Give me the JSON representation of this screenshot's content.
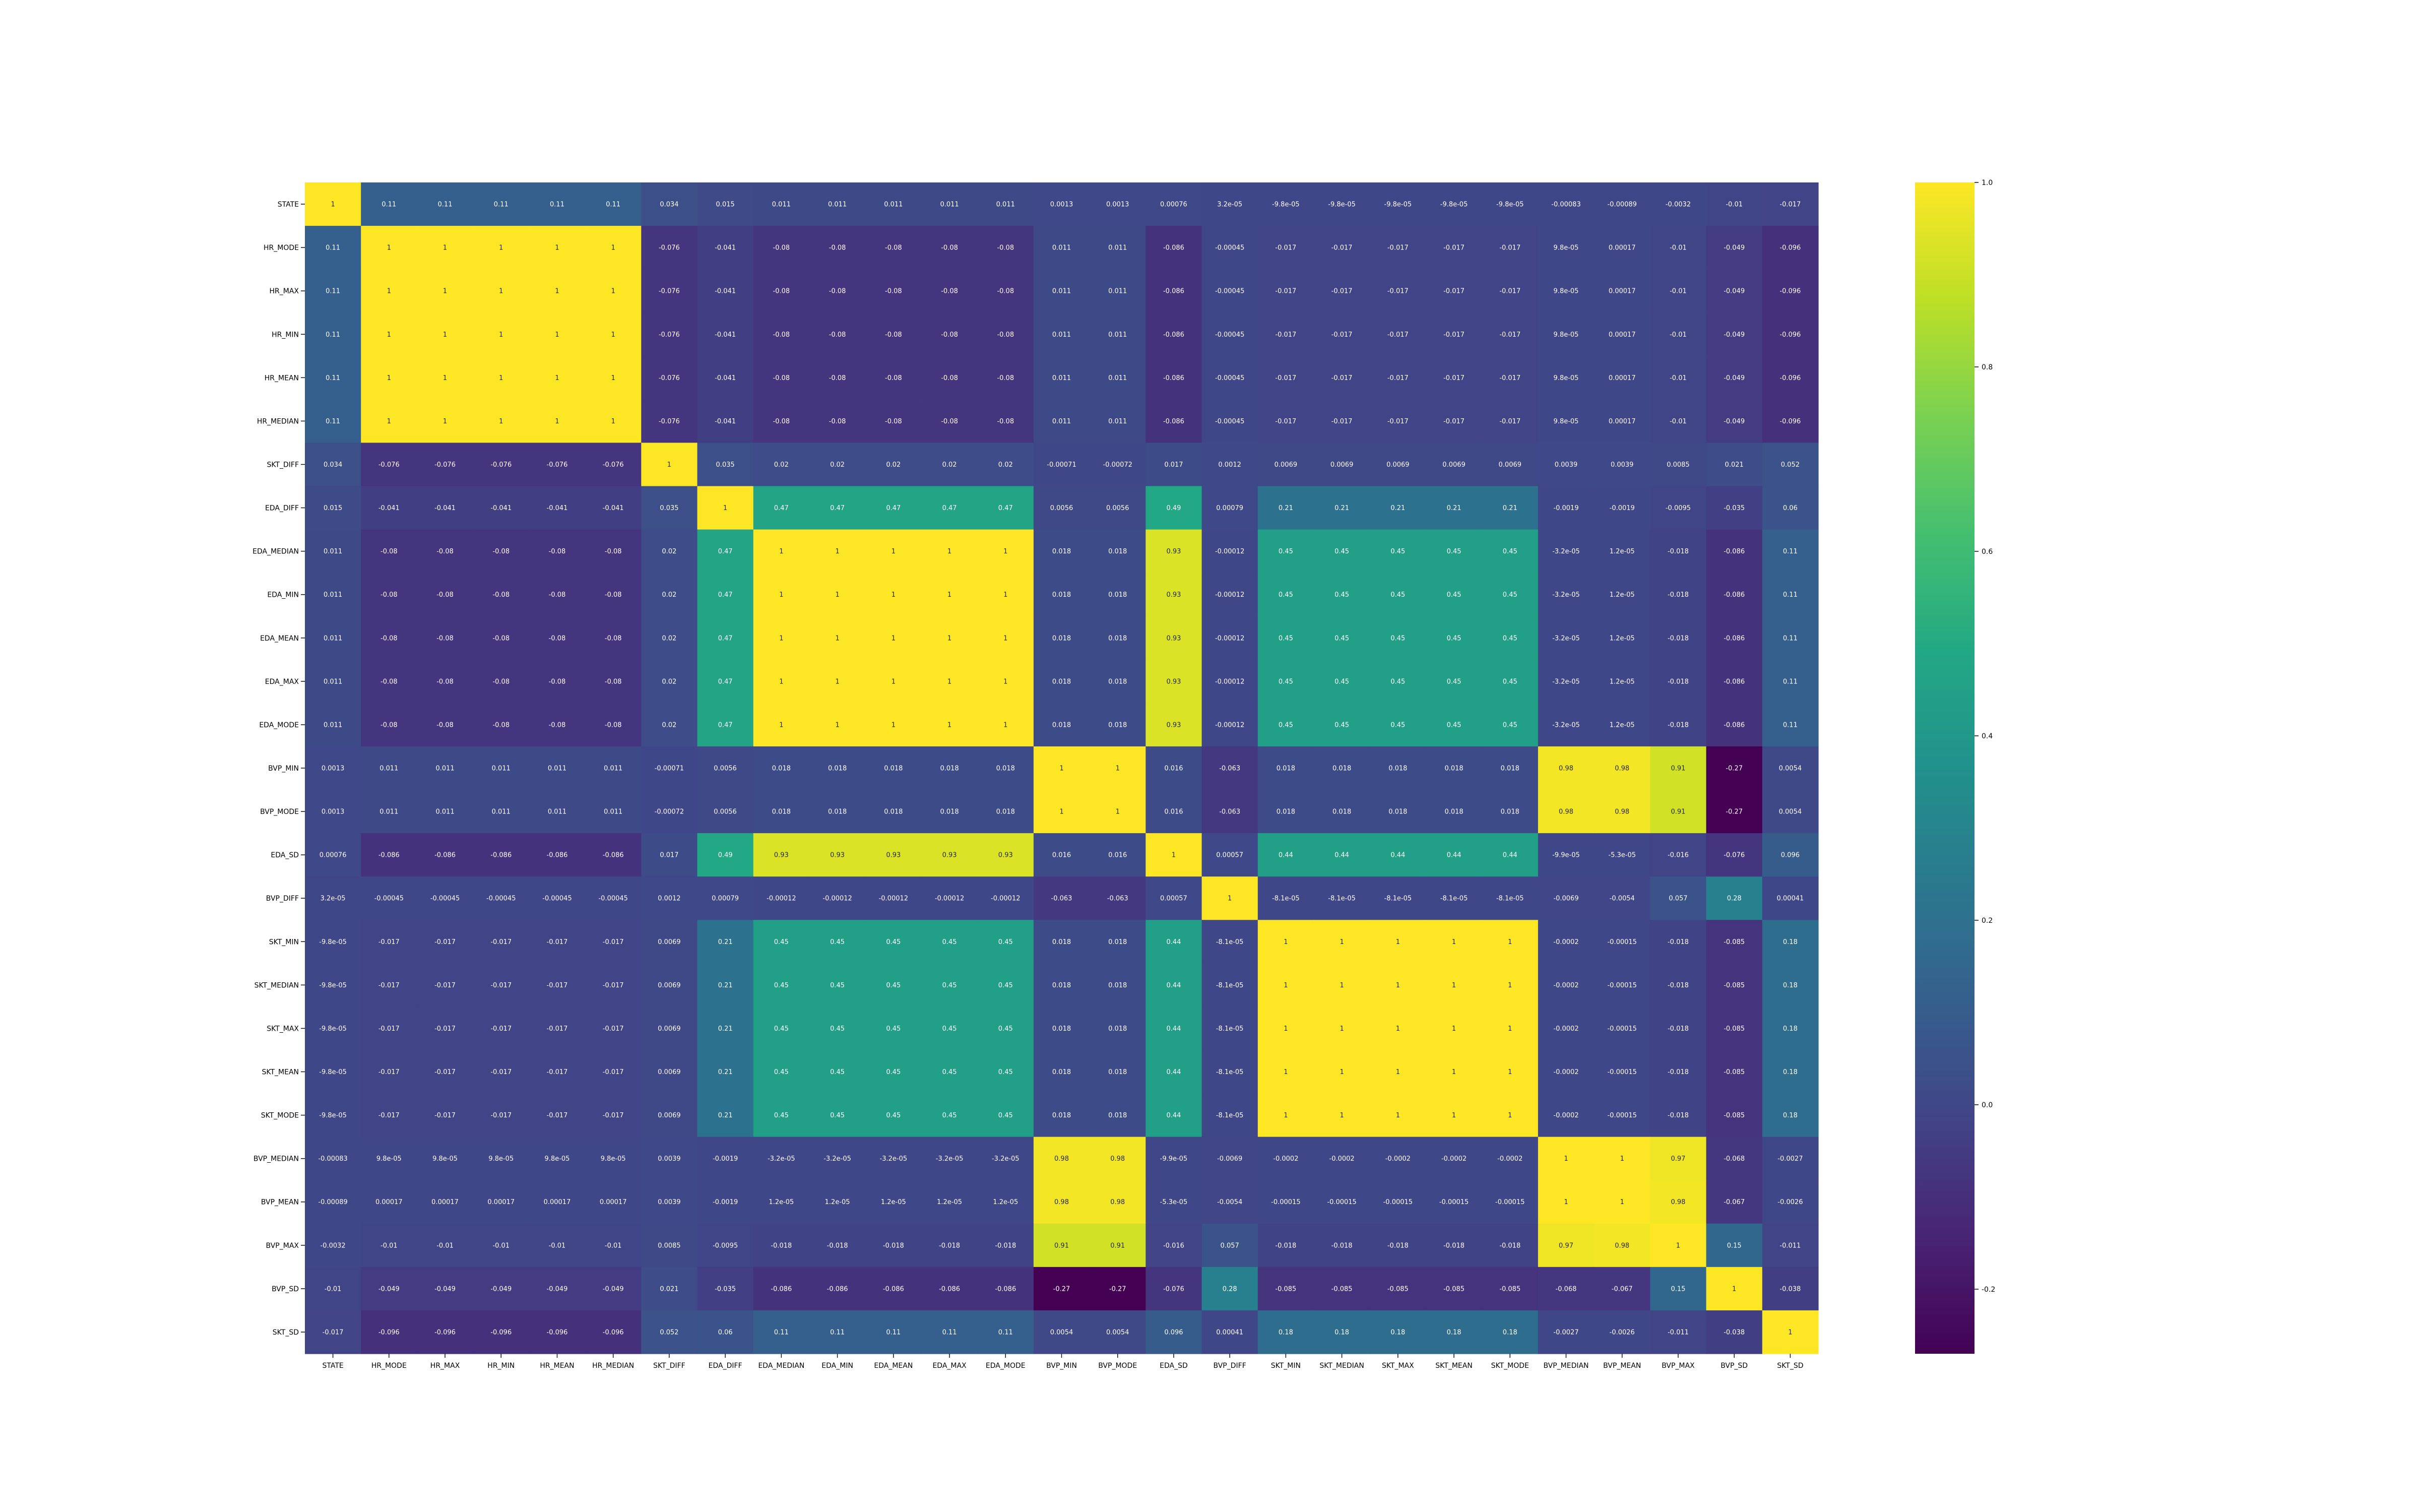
{
  "chart_data": {
    "type": "heatmap",
    "title": "",
    "xlabel": "",
    "ylabel": "",
    "labels": [
      "STATE",
      "HR_MODE",
      "HR_MAX",
      "HR_MIN",
      "HR_MEAN",
      "HR_MEDIAN",
      "SKT_DIFF",
      "EDA_DIFF",
      "EDA_MEDIAN",
      "EDA_MIN",
      "EDA_MEAN",
      "EDA_MAX",
      "EDA_MODE",
      "BVP_MIN",
      "BVP_MODE",
      "EDA_SD",
      "BVP_DIFF",
      "SKT_MIN",
      "SKT_MEDIAN",
      "SKT_MAX",
      "SKT_MEAN",
      "SKT_MODE",
      "BVP_MEDIAN",
      "BVP_MEAN",
      "BVP_MAX",
      "BVP_SD",
      "SKT_SD"
    ],
    "colormap": "viridis",
    "vmin": -0.27,
    "vmax": 1,
    "colorbar_ticks": [
      "-0.2",
      "0.0",
      "0.2",
      "0.4",
      "0.6",
      "0.8",
      "1.0"
    ],
    "colorbar_tick_values": [
      -0.2,
      0.0,
      0.2,
      0.4,
      0.6,
      0.8,
      1.0
    ],
    "colorbar_placement": "right",
    "matrix": [
      [
        "1",
        "0.11",
        "0.11",
        "0.11",
        "0.11",
        "0.11",
        "0.034",
        "0.015",
        "0.011",
        "0.011",
        "0.011",
        "0.011",
        "0.011",
        "0.0013",
        "0.0013",
        "0.00076",
        "3.2e-05",
        "-9.8e-05",
        "-9.8e-05",
        "-9.8e-05",
        "-9.8e-05",
        "-9.8e-05",
        "-0.00083",
        "-0.00089",
        "-0.0032",
        "-0.01",
        "-0.017"
      ],
      [
        "0.11",
        "1",
        "1",
        "1",
        "1",
        "1",
        "-0.076",
        "-0.041",
        "-0.08",
        "-0.08",
        "-0.08",
        "-0.08",
        "-0.08",
        "0.011",
        "0.011",
        "-0.086",
        "-0.00045",
        "-0.017",
        "-0.017",
        "-0.017",
        "-0.017",
        "-0.017",
        "9.8e-05",
        "0.00017",
        "-0.01",
        "-0.049",
        "-0.096"
      ],
      [
        "0.11",
        "1",
        "1",
        "1",
        "1",
        "1",
        "-0.076",
        "-0.041",
        "-0.08",
        "-0.08",
        "-0.08",
        "-0.08",
        "-0.08",
        "0.011",
        "0.011",
        "-0.086",
        "-0.00045",
        "-0.017",
        "-0.017",
        "-0.017",
        "-0.017",
        "-0.017",
        "9.8e-05",
        "0.00017",
        "-0.01",
        "-0.049",
        "-0.096"
      ],
      [
        "0.11",
        "1",
        "1",
        "1",
        "1",
        "1",
        "-0.076",
        "-0.041",
        "-0.08",
        "-0.08",
        "-0.08",
        "-0.08",
        "-0.08",
        "0.011",
        "0.011",
        "-0.086",
        "-0.00045",
        "-0.017",
        "-0.017",
        "-0.017",
        "-0.017",
        "-0.017",
        "9.8e-05",
        "0.00017",
        "-0.01",
        "-0.049",
        "-0.096"
      ],
      [
        "0.11",
        "1",
        "1",
        "1",
        "1",
        "1",
        "-0.076",
        "-0.041",
        "-0.08",
        "-0.08",
        "-0.08",
        "-0.08",
        "-0.08",
        "0.011",
        "0.011",
        "-0.086",
        "-0.00045",
        "-0.017",
        "-0.017",
        "-0.017",
        "-0.017",
        "-0.017",
        "9.8e-05",
        "0.00017",
        "-0.01",
        "-0.049",
        "-0.096"
      ],
      [
        "0.11",
        "1",
        "1",
        "1",
        "1",
        "1",
        "-0.076",
        "-0.041",
        "-0.08",
        "-0.08",
        "-0.08",
        "-0.08",
        "-0.08",
        "0.011",
        "0.011",
        "-0.086",
        "-0.00045",
        "-0.017",
        "-0.017",
        "-0.017",
        "-0.017",
        "-0.017",
        "9.8e-05",
        "0.00017",
        "-0.01",
        "-0.049",
        "-0.096"
      ],
      [
        "0.034",
        "-0.076",
        "-0.076",
        "-0.076",
        "-0.076",
        "-0.076",
        "1",
        "0.035",
        "0.02",
        "0.02",
        "0.02",
        "0.02",
        "0.02",
        "-0.00071",
        "-0.00072",
        "0.017",
        "0.0012",
        "0.0069",
        "0.0069",
        "0.0069",
        "0.0069",
        "0.0069",
        "0.0039",
        "0.0039",
        "0.0085",
        "0.021",
        "0.052"
      ],
      [
        "0.015",
        "-0.041",
        "-0.041",
        "-0.041",
        "-0.041",
        "-0.041",
        "0.035",
        "1",
        "0.47",
        "0.47",
        "0.47",
        "0.47",
        "0.47",
        "0.0056",
        "0.0056",
        "0.49",
        "0.00079",
        "0.21",
        "0.21",
        "0.21",
        "0.21",
        "0.21",
        "-0.0019",
        "-0.0019",
        "-0.0095",
        "-0.035",
        "0.06"
      ],
      [
        "0.011",
        "-0.08",
        "-0.08",
        "-0.08",
        "-0.08",
        "-0.08",
        "0.02",
        "0.47",
        "1",
        "1",
        "1",
        "1",
        "1",
        "0.018",
        "0.018",
        "0.93",
        "-0.00012",
        "0.45",
        "0.45",
        "0.45",
        "0.45",
        "0.45",
        "-3.2e-05",
        "1.2e-05",
        "-0.018",
        "-0.086",
        "0.11"
      ],
      [
        "0.011",
        "-0.08",
        "-0.08",
        "-0.08",
        "-0.08",
        "-0.08",
        "0.02",
        "0.47",
        "1",
        "1",
        "1",
        "1",
        "1",
        "0.018",
        "0.018",
        "0.93",
        "-0.00012",
        "0.45",
        "0.45",
        "0.45",
        "0.45",
        "0.45",
        "-3.2e-05",
        "1.2e-05",
        "-0.018",
        "-0.086",
        "0.11"
      ],
      [
        "0.011",
        "-0.08",
        "-0.08",
        "-0.08",
        "-0.08",
        "-0.08",
        "0.02",
        "0.47",
        "1",
        "1",
        "1",
        "1",
        "1",
        "0.018",
        "0.018",
        "0.93",
        "-0.00012",
        "0.45",
        "0.45",
        "0.45",
        "0.45",
        "0.45",
        "-3.2e-05",
        "1.2e-05",
        "-0.018",
        "-0.086",
        "0.11"
      ],
      [
        "0.011",
        "-0.08",
        "-0.08",
        "-0.08",
        "-0.08",
        "-0.08",
        "0.02",
        "0.47",
        "1",
        "1",
        "1",
        "1",
        "1",
        "0.018",
        "0.018",
        "0.93",
        "-0.00012",
        "0.45",
        "0.45",
        "0.45",
        "0.45",
        "0.45",
        "-3.2e-05",
        "1.2e-05",
        "-0.018",
        "-0.086",
        "0.11"
      ],
      [
        "0.011",
        "-0.08",
        "-0.08",
        "-0.08",
        "-0.08",
        "-0.08",
        "0.02",
        "0.47",
        "1",
        "1",
        "1",
        "1",
        "1",
        "0.018",
        "0.018",
        "0.93",
        "-0.00012",
        "0.45",
        "0.45",
        "0.45",
        "0.45",
        "0.45",
        "-3.2e-05",
        "1.2e-05",
        "-0.018",
        "-0.086",
        "0.11"
      ],
      [
        "0.0013",
        "0.011",
        "0.011",
        "0.011",
        "0.011",
        "0.011",
        "-0.00071",
        "0.0056",
        "0.018",
        "0.018",
        "0.018",
        "0.018",
        "0.018",
        "1",
        "1",
        "0.016",
        "-0.063",
        "0.018",
        "0.018",
        "0.018",
        "0.018",
        "0.018",
        "0.98",
        "0.98",
        "0.91",
        "-0.27",
        "0.0054"
      ],
      [
        "0.0013",
        "0.011",
        "0.011",
        "0.011",
        "0.011",
        "0.011",
        "-0.00072",
        "0.0056",
        "0.018",
        "0.018",
        "0.018",
        "0.018",
        "0.018",
        "1",
        "1",
        "0.016",
        "-0.063",
        "0.018",
        "0.018",
        "0.018",
        "0.018",
        "0.018",
        "0.98",
        "0.98",
        "0.91",
        "-0.27",
        "0.0054"
      ],
      [
        "0.00076",
        "-0.086",
        "-0.086",
        "-0.086",
        "-0.086",
        "-0.086",
        "0.017",
        "0.49",
        "0.93",
        "0.93",
        "0.93",
        "0.93",
        "0.93",
        "0.016",
        "0.016",
        "1",
        "0.00057",
        "0.44",
        "0.44",
        "0.44",
        "0.44",
        "0.44",
        "-9.9e-05",
        "-5.3e-05",
        "-0.016",
        "-0.076",
        "0.096"
      ],
      [
        "3.2e-05",
        "-0.00045",
        "-0.00045",
        "-0.00045",
        "-0.00045",
        "-0.00045",
        "0.0012",
        "0.00079",
        "-0.00012",
        "-0.00012",
        "-0.00012",
        "-0.00012",
        "-0.00012",
        "-0.063",
        "-0.063",
        "0.00057",
        "1",
        "-8.1e-05",
        "-8.1e-05",
        "-8.1e-05",
        "-8.1e-05",
        "-8.1e-05",
        "-0.0069",
        "-0.0054",
        "0.057",
        "0.28",
        "0.00041"
      ],
      [
        "-9.8e-05",
        "-0.017",
        "-0.017",
        "-0.017",
        "-0.017",
        "-0.017",
        "0.0069",
        "0.21",
        "0.45",
        "0.45",
        "0.45",
        "0.45",
        "0.45",
        "0.018",
        "0.018",
        "0.44",
        "-8.1e-05",
        "1",
        "1",
        "1",
        "1",
        "1",
        "-0.0002",
        "-0.00015",
        "-0.018",
        "-0.085",
        "0.18"
      ],
      [
        "-9.8e-05",
        "-0.017",
        "-0.017",
        "-0.017",
        "-0.017",
        "-0.017",
        "0.0069",
        "0.21",
        "0.45",
        "0.45",
        "0.45",
        "0.45",
        "0.45",
        "0.018",
        "0.018",
        "0.44",
        "-8.1e-05",
        "1",
        "1",
        "1",
        "1",
        "1",
        "-0.0002",
        "-0.00015",
        "-0.018",
        "-0.085",
        "0.18"
      ],
      [
        "-9.8e-05",
        "-0.017",
        "-0.017",
        "-0.017",
        "-0.017",
        "-0.017",
        "0.0069",
        "0.21",
        "0.45",
        "0.45",
        "0.45",
        "0.45",
        "0.45",
        "0.018",
        "0.018",
        "0.44",
        "-8.1e-05",
        "1",
        "1",
        "1",
        "1",
        "1",
        "-0.0002",
        "-0.00015",
        "-0.018",
        "-0.085",
        "0.18"
      ],
      [
        "-9.8e-05",
        "-0.017",
        "-0.017",
        "-0.017",
        "-0.017",
        "-0.017",
        "0.0069",
        "0.21",
        "0.45",
        "0.45",
        "0.45",
        "0.45",
        "0.45",
        "0.018",
        "0.018",
        "0.44",
        "-8.1e-05",
        "1",
        "1",
        "1",
        "1",
        "1",
        "-0.0002",
        "-0.00015",
        "-0.018",
        "-0.085",
        "0.18"
      ],
      [
        "-9.8e-05",
        "-0.017",
        "-0.017",
        "-0.017",
        "-0.017",
        "-0.017",
        "0.0069",
        "0.21",
        "0.45",
        "0.45",
        "0.45",
        "0.45",
        "0.45",
        "0.018",
        "0.018",
        "0.44",
        "-8.1e-05",
        "1",
        "1",
        "1",
        "1",
        "1",
        "-0.0002",
        "-0.00015",
        "-0.018",
        "-0.085",
        "0.18"
      ],
      [
        "-0.00083",
        "9.8e-05",
        "9.8e-05",
        "9.8e-05",
        "9.8e-05",
        "9.8e-05",
        "0.0039",
        "-0.0019",
        "-3.2e-05",
        "-3.2e-05",
        "-3.2e-05",
        "-3.2e-05",
        "-3.2e-05",
        "0.98",
        "0.98",
        "-9.9e-05",
        "-0.0069",
        "-0.0002",
        "-0.0002",
        "-0.0002",
        "-0.0002",
        "-0.0002",
        "1",
        "1",
        "0.97",
        "-0.068",
        "-0.0027"
      ],
      [
        "-0.00089",
        "0.00017",
        "0.00017",
        "0.00017",
        "0.00017",
        "0.00017",
        "0.0039",
        "-0.0019",
        "1.2e-05",
        "1.2e-05",
        "1.2e-05",
        "1.2e-05",
        "1.2e-05",
        "0.98",
        "0.98",
        "-5.3e-05",
        "-0.0054",
        "-0.00015",
        "-0.00015",
        "-0.00015",
        "-0.00015",
        "-0.00015",
        "1",
        "1",
        "0.98",
        "-0.067",
        "-0.0026"
      ],
      [
        "-0.0032",
        "-0.01",
        "-0.01",
        "-0.01",
        "-0.01",
        "-0.01",
        "0.0085",
        "-0.0095",
        "-0.018",
        "-0.018",
        "-0.018",
        "-0.018",
        "-0.018",
        "0.91",
        "0.91",
        "-0.016",
        "0.057",
        "-0.018",
        "-0.018",
        "-0.018",
        "-0.018",
        "-0.018",
        "0.97",
        "0.98",
        "1",
        "0.15",
        "-0.011"
      ],
      [
        "-0.01",
        "-0.049",
        "-0.049",
        "-0.049",
        "-0.049",
        "-0.049",
        "0.021",
        "-0.035",
        "-0.086",
        "-0.086",
        "-0.086",
        "-0.086",
        "-0.086",
        "-0.27",
        "-0.27",
        "-0.076",
        "0.28",
        "-0.085",
        "-0.085",
        "-0.085",
        "-0.085",
        "-0.085",
        "-0.068",
        "-0.067",
        "0.15",
        "1",
        "-0.038"
      ],
      [
        "-0.017",
        "-0.096",
        "-0.096",
        "-0.096",
        "-0.096",
        "-0.096",
        "0.052",
        "0.06",
        "0.11",
        "0.11",
        "0.11",
        "0.11",
        "0.11",
        "0.0054",
        "0.0054",
        "0.096",
        "0.00041",
        "0.18",
        "0.18",
        "0.18",
        "0.18",
        "0.18",
        "-0.0027",
        "-0.0026",
        "-0.011",
        "-0.038",
        "1"
      ]
    ]
  }
}
